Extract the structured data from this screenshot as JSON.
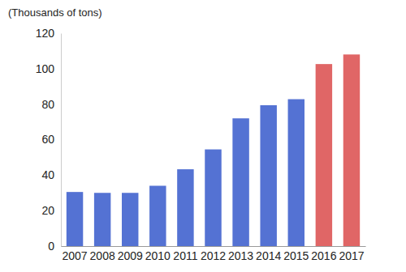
{
  "chart_data": {
    "type": "bar",
    "y_label": "(Thousands of tons)",
    "categories": [
      "2007",
      "2008",
      "2009",
      "2010",
      "2011",
      "2012",
      "2013",
      "2014",
      "2015",
      "2016",
      "2017"
    ],
    "values": [
      30.5,
      30,
      30,
      34,
      43.3,
      54.5,
      72,
      79.4,
      82.8,
      102.6,
      108
    ],
    "colors": [
      "#5472d3",
      "#5472d3",
      "#5472d3",
      "#5472d3",
      "#5472d3",
      "#5472d3",
      "#5472d3",
      "#5472d3",
      "#5472d3",
      "#e06666",
      "#e06666"
    ],
    "ylim": [
      0,
      120
    ],
    "yticks": [
      0,
      20,
      40,
      60,
      80,
      100,
      120
    ],
    "grid": false
  }
}
